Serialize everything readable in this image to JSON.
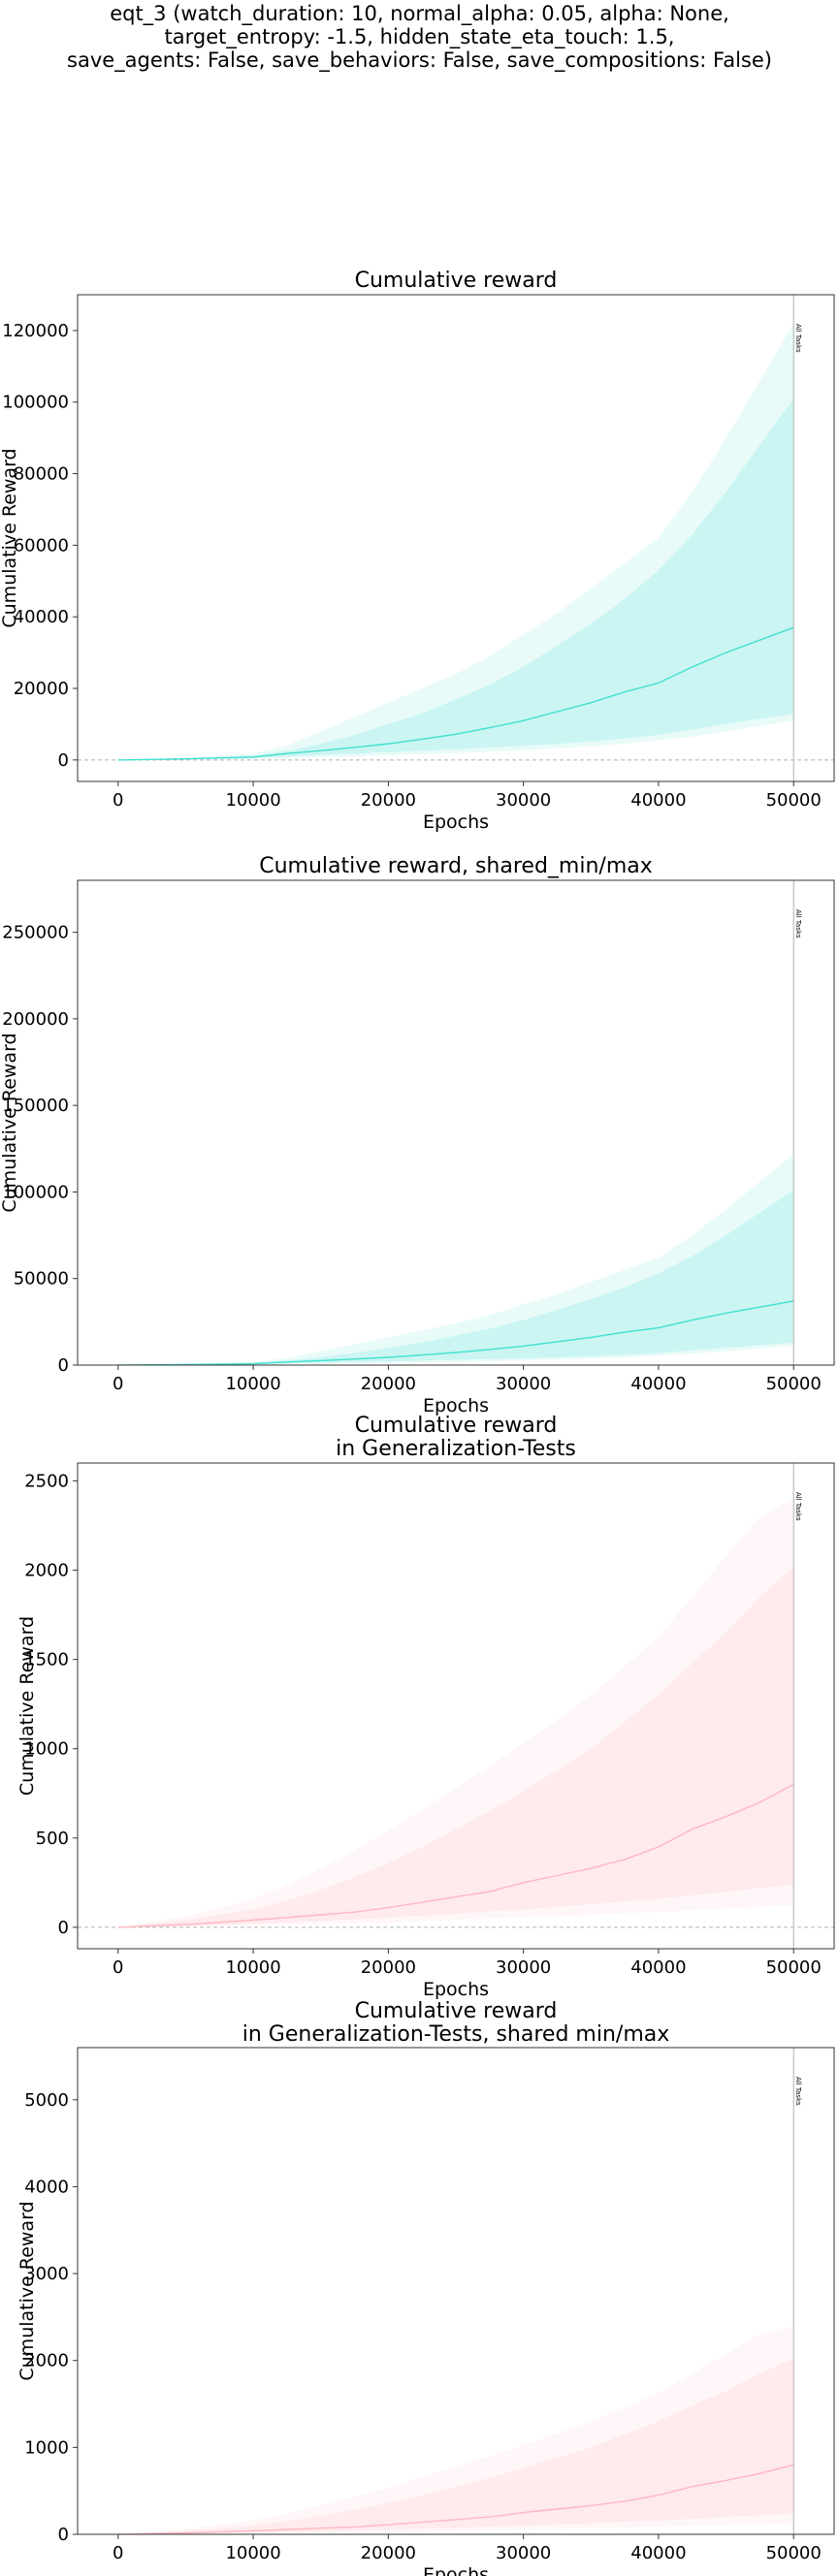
{
  "figure_title": [
    "eqt_3 (watch_duration: 10, normal_alpha: 0.05, alpha: None,",
    "target_entropy: -1.5, hidden_state_eta_touch: 1.5,",
    "save_agents: False, save_behaviors: False, save_compositions: False)"
  ],
  "colors": {
    "train_line": "#40e0d0",
    "train_band": "#40e0d0",
    "gen_line": "#ffb6c1",
    "gen_band": "#ffb6c1",
    "zero_line": "#b0b0b0",
    "vline": "#b0b0b0"
  },
  "chart_data": [
    {
      "type": "line",
      "title": [
        "Cumulative reward"
      ],
      "xlabel": "Epochs",
      "ylabel": "Cumulative Reward",
      "xlim": [
        -3000,
        53000
      ],
      "ylim": [
        -6000,
        130000
      ],
      "xticks": [
        0,
        10000,
        20000,
        30000,
        40000,
        50000
      ],
      "yticks": [
        0,
        20000,
        40000,
        60000,
        80000,
        100000,
        120000
      ],
      "zero_line": true,
      "vline": {
        "x": 50000,
        "label": "All Tasks"
      },
      "series": [
        {
          "color_key": "train",
          "x": [
            0,
            5000,
            10000,
            12500,
            15000,
            17500,
            20000,
            22500,
            25000,
            27500,
            30000,
            32500,
            35000,
            37500,
            40000,
            42500,
            45000,
            47500,
            50000
          ],
          "mean": [
            0,
            300,
            800,
            1800,
            2600,
            3500,
            4500,
            5800,
            7200,
            9000,
            11000,
            13500,
            16000,
            19000,
            21500,
            26000,
            30000,
            33500,
            37000
          ],
          "q_low": [
            0,
            200,
            500,
            1000,
            1400,
            1800,
            2200,
            2600,
            3000,
            3500,
            4000,
            4500,
            5200,
            6000,
            7000,
            8500,
            10000,
            11500,
            13000
          ],
          "q_high": [
            0,
            400,
            1200,
            2500,
            4500,
            7000,
            10000,
            13000,
            17000,
            21000,
            26000,
            32000,
            38000,
            45000,
            53000,
            63000,
            75000,
            88000,
            101000
          ],
          "min": [
            0,
            100,
            300,
            600,
            800,
            1000,
            1300,
            1600,
            1900,
            2300,
            2700,
            3200,
            3800,
            4500,
            5500,
            6500,
            8000,
            9500,
            11000
          ],
          "max": [
            0,
            600,
            1800,
            4000,
            8000,
            12000,
            16000,
            20000,
            24000,
            29000,
            35000,
            41000,
            48000,
            55000,
            62000,
            75000,
            90000,
            106000,
            122000
          ]
        }
      ]
    },
    {
      "type": "line",
      "title": [
        "Cumulative reward, shared_min/max"
      ],
      "xlabel": "Epochs",
      "ylabel": "Cumulative Reward",
      "xlim": [
        -3000,
        53000
      ],
      "ylim": [
        0,
        280000
      ],
      "xticks": [
        0,
        10000,
        20000,
        30000,
        40000,
        50000
      ],
      "yticks": [
        0,
        50000,
        100000,
        150000,
        200000,
        250000
      ],
      "zero_line": false,
      "vline": {
        "x": 50000,
        "label": "All Tasks"
      },
      "series": [
        {
          "color_key": "train",
          "x": [
            0,
            5000,
            10000,
            12500,
            15000,
            17500,
            20000,
            22500,
            25000,
            27500,
            30000,
            32500,
            35000,
            37500,
            40000,
            42500,
            45000,
            47500,
            50000
          ],
          "mean": [
            0,
            300,
            800,
            1800,
            2600,
            3500,
            4500,
            5800,
            7200,
            9000,
            11000,
            13500,
            16000,
            19000,
            21500,
            26000,
            30000,
            33500,
            37000
          ],
          "q_low": [
            0,
            200,
            500,
            1000,
            1400,
            1800,
            2200,
            2600,
            3000,
            3500,
            4000,
            4500,
            5200,
            6000,
            7000,
            8500,
            10000,
            11500,
            13000
          ],
          "q_high": [
            0,
            400,
            1200,
            2500,
            4500,
            7000,
            10000,
            13000,
            17000,
            21000,
            26000,
            32000,
            38000,
            45000,
            53000,
            63000,
            75000,
            88000,
            101000
          ],
          "min": [
            0,
            100,
            300,
            600,
            800,
            1000,
            1300,
            1600,
            1900,
            2300,
            2700,
            3200,
            3800,
            4500,
            5500,
            6500,
            8000,
            9500,
            11000
          ],
          "max": [
            0,
            600,
            1800,
            4000,
            8000,
            12000,
            16000,
            20000,
            24000,
            29000,
            35000,
            41000,
            48000,
            55000,
            62000,
            75000,
            90000,
            106000,
            122000
          ]
        }
      ]
    },
    {
      "type": "line",
      "title": [
        "Cumulative reward",
        "in Generalization-Tests"
      ],
      "xlabel": "Epochs",
      "ylabel": "Cumulative Reward",
      "xlim": [
        -3000,
        53000
      ],
      "ylim": [
        -120,
        2600
      ],
      "xticks": [
        0,
        10000,
        20000,
        30000,
        40000,
        50000
      ],
      "yticks": [
        0,
        500,
        1000,
        1500,
        2000,
        2500
      ],
      "zero_line": true,
      "vline": {
        "x": 50000,
        "label": "All Tasks"
      },
      "series": [
        {
          "color_key": "gen",
          "x": [
            0,
            5000,
            10000,
            12500,
            15000,
            17500,
            20000,
            22500,
            25000,
            27500,
            30000,
            32500,
            35000,
            37500,
            40000,
            42500,
            45000,
            47500,
            50000
          ],
          "mean": [
            0,
            15,
            40,
            55,
            70,
            85,
            110,
            140,
            170,
            200,
            250,
            290,
            330,
            380,
            450,
            550,
            620,
            700,
            800
          ],
          "q_low": [
            0,
            8,
            20,
            28,
            35,
            45,
            55,
            65,
            75,
            90,
            100,
            115,
            130,
            145,
            160,
            180,
            200,
            220,
            240
          ],
          "q_high": [
            0,
            40,
            100,
            150,
            210,
            280,
            360,
            450,
            550,
            650,
            760,
            880,
            1000,
            1150,
            1300,
            1480,
            1650,
            1850,
            2020
          ],
          "min": [
            0,
            4,
            10,
            14,
            18,
            22,
            28,
            34,
            40,
            48,
            55,
            62,
            70,
            78,
            86,
            95,
            105,
            115,
            125
          ],
          "max": [
            0,
            60,
            160,
            240,
            330,
            430,
            540,
            660,
            780,
            900,
            1030,
            1160,
            1300,
            1460,
            1630,
            1850,
            2080,
            2300,
            2400
          ]
        }
      ]
    },
    {
      "type": "line",
      "title": [
        "Cumulative reward",
        "in Generalization-Tests, shared min/max"
      ],
      "xlabel": "Epochs",
      "ylabel": "Cumulative Reward",
      "xlim": [
        -3000,
        53000
      ],
      "ylim": [
        0,
        5600
      ],
      "xticks": [
        0,
        10000,
        20000,
        30000,
        40000,
        50000
      ],
      "yticks": [
        0,
        1000,
        2000,
        3000,
        4000,
        5000
      ],
      "zero_line": false,
      "vline": {
        "x": 50000,
        "label": "All Tasks"
      },
      "series": [
        {
          "color_key": "gen",
          "x": [
            0,
            5000,
            10000,
            12500,
            15000,
            17500,
            20000,
            22500,
            25000,
            27500,
            30000,
            32500,
            35000,
            37500,
            40000,
            42500,
            45000,
            47500,
            50000
          ],
          "mean": [
            0,
            15,
            40,
            55,
            70,
            85,
            110,
            140,
            170,
            200,
            250,
            290,
            330,
            380,
            450,
            550,
            620,
            700,
            800
          ],
          "q_low": [
            0,
            8,
            20,
            28,
            35,
            45,
            55,
            65,
            75,
            90,
            100,
            115,
            130,
            145,
            160,
            180,
            200,
            220,
            240
          ],
          "q_high": [
            0,
            40,
            100,
            150,
            210,
            280,
            360,
            450,
            550,
            650,
            760,
            880,
            1000,
            1150,
            1300,
            1480,
            1650,
            1850,
            2020
          ],
          "min": [
            0,
            4,
            10,
            14,
            18,
            22,
            28,
            34,
            40,
            48,
            55,
            62,
            70,
            78,
            86,
            95,
            105,
            115,
            125
          ],
          "max": [
            0,
            60,
            160,
            240,
            330,
            430,
            540,
            660,
            780,
            900,
            1030,
            1160,
            1300,
            1460,
            1630,
            1850,
            2080,
            2300,
            2400
          ]
        }
      ]
    }
  ]
}
